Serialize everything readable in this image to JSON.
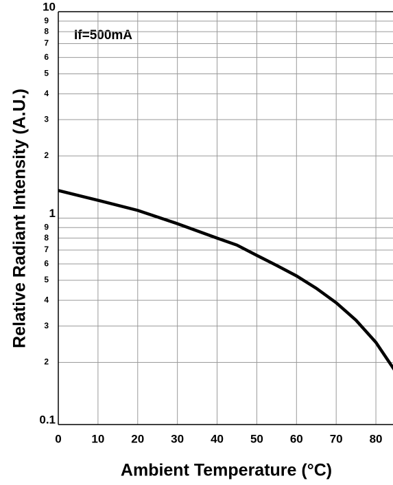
{
  "chart_data": {
    "type": "line",
    "log_y": true,
    "grid": true,
    "annotation": "If=500mA",
    "xlabel": "Ambient Temperature (°C)",
    "ylabel": "Relative Radiant Intensity (A.U.)",
    "x": [
      0,
      10,
      20,
      30,
      40,
      45,
      50,
      55,
      60,
      65,
      70,
      75,
      80,
      85
    ],
    "series": [
      {
        "color": "#000000",
        "values": [
          1.36,
          1.22,
          1.09,
          0.94,
          0.8,
          0.74,
          0.66,
          0.59,
          0.525,
          0.457,
          0.389,
          0.32,
          0.25,
          0.18
        ]
      }
    ],
    "xlim": [
      0,
      85
    ],
    "xticks": [
      0,
      10,
      20,
      30,
      40,
      50,
      60,
      70,
      80
    ],
    "ylim": [
      0.1,
      10
    ],
    "yticks": [
      0.1,
      {
        "value": 0.2,
        "label": "2"
      },
      {
        "value": 0.3,
        "label": "3"
      },
      {
        "value": 0.4,
        "label": "4"
      },
      {
        "value": 0.5,
        "label": "5"
      },
      {
        "value": 0.6,
        "label": "6"
      },
      {
        "value": 0.7,
        "label": "7"
      },
      {
        "value": 0.8,
        "label": "8"
      },
      {
        "value": 0.9,
        "label": "9"
      },
      1,
      2,
      3,
      4,
      5,
      6,
      7,
      8,
      9,
      10
    ]
  }
}
